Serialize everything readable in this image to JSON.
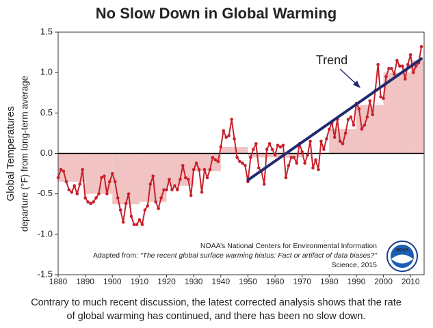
{
  "chart_data": {
    "type": "line",
    "title": "No Slow Down in Global Warming",
    "ylabel_lines": [
      "Global Temperatures",
      "departure (°F) from long-term average"
    ],
    "x": [
      1880,
      1881,
      1882,
      1883,
      1884,
      1885,
      1886,
      1887,
      1888,
      1889,
      1890,
      1891,
      1892,
      1893,
      1894,
      1895,
      1896,
      1897,
      1898,
      1899,
      1900,
      1901,
      1902,
      1903,
      1904,
      1905,
      1906,
      1907,
      1908,
      1909,
      1910,
      1911,
      1912,
      1913,
      1914,
      1915,
      1916,
      1917,
      1918,
      1919,
      1920,
      1921,
      1922,
      1923,
      1924,
      1925,
      1926,
      1927,
      1928,
      1929,
      1930,
      1931,
      1932,
      1933,
      1934,
      1935,
      1936,
      1937,
      1938,
      1939,
      1940,
      1941,
      1942,
      1943,
      1944,
      1945,
      1946,
      1947,
      1948,
      1949,
      1950,
      1951,
      1952,
      1953,
      1954,
      1955,
      1956,
      1957,
      1958,
      1959,
      1960,
      1961,
      1962,
      1963,
      1964,
      1965,
      1966,
      1967,
      1968,
      1969,
      1970,
      1971,
      1972,
      1973,
      1974,
      1975,
      1976,
      1977,
      1978,
      1979,
      1980,
      1981,
      1982,
      1983,
      1984,
      1985,
      1986,
      1987,
      1988,
      1989,
      1990,
      1991,
      1992,
      1993,
      1994,
      1995,
      1996,
      1997,
      1998,
      1999,
      2000,
      2001,
      2002,
      2003,
      2004,
      2005,
      2006,
      2007,
      2008,
      2009,
      2010,
      2011,
      2012,
      2013,
      2014
    ],
    "values": [
      -0.3,
      -0.2,
      -0.22,
      -0.35,
      -0.45,
      -0.48,
      -0.4,
      -0.5,
      -0.38,
      -0.2,
      -0.55,
      -0.6,
      -0.62,
      -0.6,
      -0.55,
      -0.5,
      -0.3,
      -0.28,
      -0.5,
      -0.35,
      -0.25,
      -0.35,
      -0.55,
      -0.7,
      -0.85,
      -0.62,
      -0.5,
      -0.78,
      -0.88,
      -0.88,
      -0.82,
      -0.88,
      -0.7,
      -0.65,
      -0.38,
      -0.28,
      -0.6,
      -0.68,
      -0.55,
      -0.45,
      -0.45,
      -0.32,
      -0.45,
      -0.4,
      -0.45,
      -0.32,
      -0.15,
      -0.3,
      -0.32,
      -0.52,
      -0.2,
      -0.12,
      -0.2,
      -0.48,
      -0.2,
      -0.3,
      -0.2,
      -0.05,
      -0.08,
      -0.1,
      0.08,
      0.28,
      0.2,
      0.22,
      0.42,
      0.18,
      -0.05,
      -0.1,
      -0.12,
      -0.15,
      -0.35,
      -0.05,
      0.05,
      0.12,
      -0.18,
      -0.22,
      -0.38,
      0.05,
      0.12,
      0.05,
      -0.02,
      0.1,
      0.08,
      0.1,
      -0.3,
      -0.15,
      -0.05,
      -0.05,
      -0.12,
      0.12,
      0.02,
      -0.12,
      -0.02,
      0.15,
      -0.18,
      -0.08,
      -0.2,
      0.15,
      0.05,
      0.18,
      0.3,
      0.38,
      0.2,
      0.42,
      0.15,
      0.12,
      0.25,
      0.42,
      0.45,
      0.35,
      0.62,
      0.55,
      0.3,
      0.35,
      0.45,
      0.65,
      0.48,
      0.78,
      1.1,
      0.7,
      0.68,
      0.95,
      1.05,
      1.05,
      0.98,
      1.15,
      1.08,
      1.08,
      0.92,
      1.1,
      1.22,
      1.0,
      1.08,
      1.12,
      1.32
    ],
    "color": "#c8202a",
    "decade_bars": {
      "bins": [
        1880,
        1890,
        1900,
        1910,
        1920,
        1930,
        1940,
        1950,
        1960,
        1970,
        1980,
        1990,
        2000,
        2010,
        2015
      ],
      "values": [
        -0.35,
        -0.5,
        -0.63,
        -0.6,
        -0.4,
        -0.22,
        0.08,
        -0.05,
        -0.05,
        0.0,
        0.3,
        0.6,
        1.0,
        1.15
      ],
      "color": "#f1c3c3"
    },
    "trend": {
      "label": "Trend",
      "x": [
        1950,
        2014
      ],
      "values": [
        -0.33,
        1.17
      ],
      "color": "#202a6e"
    },
    "xlim": [
      1880,
      2015
    ],
    "ylim": [
      -1.5,
      1.5
    ],
    "xticks": [
      1880,
      1890,
      1900,
      1910,
      1920,
      1930,
      1940,
      1950,
      1960,
      1970,
      1980,
      1990,
      2000,
      2010
    ],
    "yticks": [
      1.5,
      {
        "value": 1,
        "label": "1.0"
      },
      0.5,
      {
        "value": 0,
        "label": "0.0"
      },
      -0.5,
      {
        "value": -1,
        "label": "-1.0"
      },
      -1.5
    ],
    "source": {
      "line1": "NOAA’s National Centers for Environmental Information",
      "line2_prefix": "Adapted from: ",
      "line2_title": "“The recent global surface warming hiatus: Fact or artifact of data biases?”",
      "line3": "Science, 2015",
      "logo_text": "NOAA"
    },
    "caption_lines": [
      "Contrary to much recent discussion, the latest corrected analysis shows that the rate",
      "of global warming has continued, and there has been no slow down."
    ]
  }
}
